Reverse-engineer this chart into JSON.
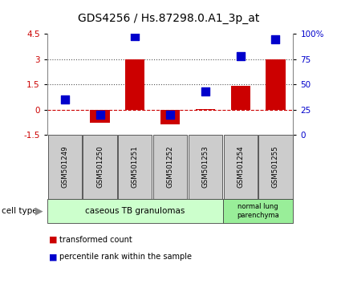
{
  "title": "GDS4256 / Hs.87298.0.A1_3p_at",
  "samples": [
    "GSM501249",
    "GSM501250",
    "GSM501251",
    "GSM501252",
    "GSM501253",
    "GSM501254",
    "GSM501255"
  ],
  "transformed_count": [
    0.0,
    -0.8,
    3.0,
    -0.9,
    0.05,
    1.4,
    3.0
  ],
  "percentile_rank": [
    35,
    20,
    98,
    20,
    43,
    78,
    95
  ],
  "ylim_left": [
    -1.5,
    4.5
  ],
  "ylim_right": [
    0,
    100
  ],
  "right_ticks": [
    0,
    25,
    50,
    75,
    100
  ],
  "right_tick_labels": [
    "0",
    "25",
    "50",
    "75",
    "100%"
  ],
  "left_ticks": [
    -1.5,
    0,
    1.5,
    3,
    4.5
  ],
  "left_tick_labels": [
    "-1.5",
    "0",
    "1.5",
    "3",
    "4.5"
  ],
  "hlines": [
    0,
    1.5,
    3.0
  ],
  "hline_styles": [
    "--",
    ":",
    ":"
  ],
  "hline_colors": [
    "#cc0000",
    "#555555",
    "#555555"
  ],
  "bar_color": "#cc0000",
  "dot_color": "#0000cc",
  "bar_width": 0.55,
  "dot_size": 55,
  "cell_type_groups": [
    {
      "label": "caseous TB granulomas",
      "start": 0,
      "end": 4,
      "color": "#ccffcc"
    },
    {
      "label": "normal lung\nparenchyma",
      "start": 5,
      "end": 6,
      "color": "#99ee99"
    }
  ],
  "legend_bar_label": "transformed count",
  "legend_dot_label": "percentile rank within the sample",
  "cell_type_label": "cell type",
  "bg_color": "#ffffff",
  "tick_label_color_left": "#cc0000",
  "tick_label_color_right": "#0000cc",
  "title_fontsize": 10,
  "axis_fontsize": 7.5,
  "label_fontsize": 7.5,
  "sample_box_color": "#cccccc"
}
